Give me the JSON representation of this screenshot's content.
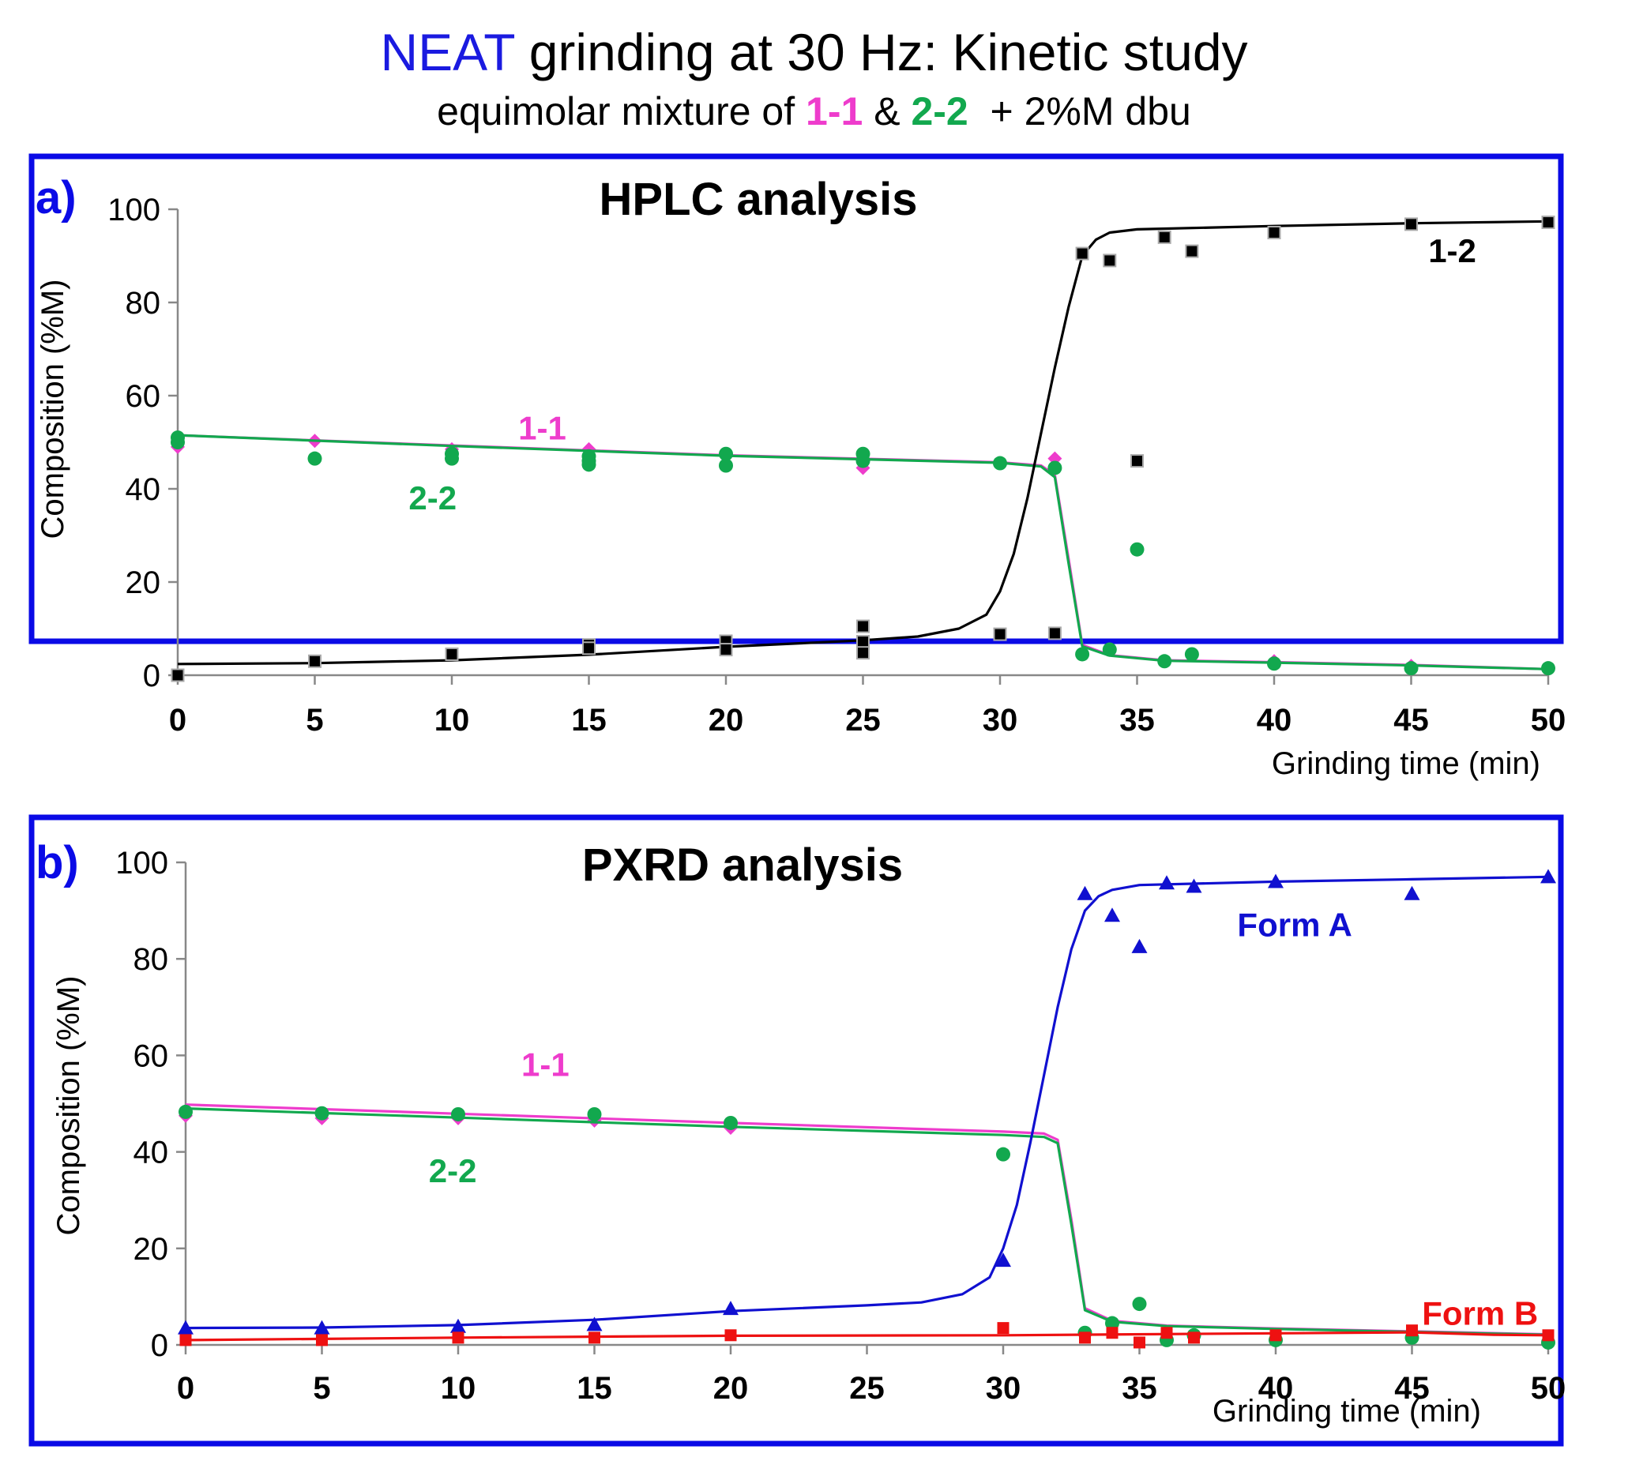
{
  "header": {
    "title_highlight": "NEAT",
    "title_rest": "grinding at 30 Hz: Kinetic study",
    "subtitle_pre": "equimolar mixture of",
    "subtitle_a": "1-1",
    "subtitle_amp": "&",
    "subtitle_b": "2-2",
    "subtitle_post": "+ 2%M dbu"
  },
  "colors": {
    "frame": "#0a0ae6",
    "highlight_blue": "#1a1ae0",
    "magenta": "#ee3ccc",
    "green": "#12a84e",
    "black": "#000000",
    "blue": "#1010d0",
    "red": "#ee1111",
    "axis": "#888888"
  },
  "chart_data": [
    {
      "type": "scatter",
      "panel_label": "a)",
      "title": "HPLC analysis",
      "xlabel": "Grinding time (min)",
      "ylabel": "Composition (%M)",
      "xlim": [
        0,
        50
      ],
      "ylim": [
        0,
        100
      ],
      "xticks": [
        "0",
        "5",
        "10",
        "15",
        "20",
        "25",
        "30",
        "35",
        "40",
        "45",
        "50"
      ],
      "yticks": [
        "0",
        "20",
        "40",
        "60",
        "80",
        "100"
      ],
      "grid": false,
      "annotations": [
        {
          "text": "1-2",
          "x": 46.5,
          "y": 91,
          "color": "black"
        },
        {
          "text": "1-1",
          "x": 13.3,
          "y": 53,
          "color": "magenta"
        },
        {
          "text": "2-2",
          "x": 9.3,
          "y": 38,
          "color": "green"
        }
      ],
      "series": [
        {
          "marker": "diamond",
          "color": "magenta",
          "points": [
            [
              0,
              49
            ],
            [
              5,
              50.3
            ],
            [
              10,
              48.5
            ],
            [
              15,
              48.5
            ],
            [
              20,
              47
            ],
            [
              25,
              44.5
            ],
            [
              30,
              45.5
            ],
            [
              32,
              46.5
            ],
            [
              34,
              5.5
            ],
            [
              36,
              3
            ],
            [
              37,
              4.5
            ],
            [
              40,
              3
            ],
            [
              45,
              2
            ],
            [
              50,
              1.5
            ]
          ],
          "fit": [
            [
              0,
              51.5
            ],
            [
              10,
              49.3
            ],
            [
              20,
              47.2
            ],
            [
              30,
              45.7
            ],
            [
              31.5,
              45
            ],
            [
              32,
              43
            ],
            [
              32.5,
              25
            ],
            [
              33,
              6.5
            ],
            [
              34,
              4.3
            ],
            [
              36,
              3.2
            ],
            [
              40,
              2.8
            ],
            [
              45,
              2.2
            ],
            [
              50,
              1.3
            ]
          ]
        },
        {
          "marker": "circle",
          "color": "green",
          "points": [
            [
              0,
              51
            ],
            [
              0,
              50
            ],
            [
              5,
              46.5
            ],
            [
              10,
              47.5
            ],
            [
              10,
              46.5
            ],
            [
              15,
              47
            ],
            [
              15,
              46
            ],
            [
              15,
              45.2
            ],
            [
              20,
              47.5
            ],
            [
              20,
              45
            ],
            [
              25,
              47.5
            ],
            [
              25,
              46
            ],
            [
              30,
              45.5
            ],
            [
              32,
              44.5
            ],
            [
              33,
              4.5
            ],
            [
              34,
              5.5
            ],
            [
              35,
              27
            ],
            [
              36,
              3
            ],
            [
              37,
              4.5
            ],
            [
              40,
              2.5
            ],
            [
              45,
              1.5
            ],
            [
              50,
              1.5
            ]
          ],
          "fit": [
            [
              0,
              51.5
            ],
            [
              10,
              49.2
            ],
            [
              20,
              47.1
            ],
            [
              30,
              45.6
            ],
            [
              31.5,
              44.8
            ],
            [
              32,
              42.5
            ],
            [
              32.5,
              24
            ],
            [
              33,
              6.2
            ],
            [
              34,
              4.2
            ],
            [
              36,
              3.1
            ],
            [
              40,
              2.7
            ],
            [
              45,
              2.1
            ],
            [
              50,
              1.3
            ]
          ]
        },
        {
          "marker": "square",
          "color": "black",
          "points": [
            [
              0,
              0
            ],
            [
              5,
              3
            ],
            [
              10,
              4.5
            ],
            [
              15,
              6.5
            ],
            [
              15,
              5.8
            ],
            [
              20,
              7.3
            ],
            [
              20,
              5.5
            ],
            [
              25,
              10.5
            ],
            [
              25,
              7.2
            ],
            [
              25,
              4.8
            ],
            [
              30,
              8.8
            ],
            [
              32,
              9
            ],
            [
              33,
              90.5
            ],
            [
              34,
              89
            ],
            [
              35,
              46
            ],
            [
              36,
              94
            ],
            [
              37,
              91
            ],
            [
              40,
              95
            ],
            [
              45,
              96.8
            ],
            [
              50,
              97.2
            ]
          ],
          "fit": [
            [
              0,
              2.4
            ],
            [
              5,
              2.6
            ],
            [
              10,
              3.2
            ],
            [
              15,
              4.4
            ],
            [
              20,
              6.1
            ],
            [
              25,
              7.5
            ],
            [
              27,
              8.3
            ],
            [
              28.5,
              10
            ],
            [
              29.5,
              13
            ],
            [
              30,
              18
            ],
            [
              30.5,
              26
            ],
            [
              31,
              38
            ],
            [
              31.5,
              52
            ],
            [
              32,
              66
            ],
            [
              32.5,
              79
            ],
            [
              33,
              90
            ],
            [
              33.5,
              93.5
            ],
            [
              34,
              95
            ],
            [
              35,
              95.7
            ],
            [
              40,
              96.4
            ],
            [
              45,
              97
            ],
            [
              50,
              97.4
            ]
          ]
        }
      ]
    },
    {
      "type": "scatter",
      "panel_label": "b)",
      "title": "PXRD analysis",
      "xlabel": "Grinding time (min)",
      "ylabel": "Composition (%M)",
      "xlim": [
        0,
        50
      ],
      "ylim": [
        0,
        100
      ],
      "xticks": [
        "0",
        "5",
        "10",
        "15",
        "20",
        "25",
        "30",
        "35",
        "40",
        "45",
        "50"
      ],
      "yticks": [
        "0",
        "20",
        "40",
        "60",
        "80",
        "100"
      ],
      "grid": false,
      "annotations": [
        {
          "text": "Form A",
          "x": 40.7,
          "y": 87,
          "color": "blue"
        },
        {
          "text": "1-1",
          "x": 13.2,
          "y": 58,
          "color": "magenta"
        },
        {
          "text": "2-2",
          "x": 9.8,
          "y": 36,
          "color": "green"
        },
        {
          "text": "Form B",
          "x": 47.5,
          "y": 6.5,
          "color": "red"
        }
      ],
      "series": [
        {
          "marker": "diamond",
          "color": "magenta",
          "points": [
            [
              0,
              47.5
            ],
            [
              5,
              47
            ],
            [
              10,
              47
            ],
            [
              15,
              46.5
            ],
            [
              20,
              45
            ],
            [
              30,
              39.5
            ]
          ],
          "fit": [
            [
              0,
              49.8
            ],
            [
              10,
              47.9
            ],
            [
              20,
              46
            ],
            [
              30,
              44.2
            ],
            [
              31.5,
              43.8
            ],
            [
              32,
              42.5
            ],
            [
              32.5,
              26
            ],
            [
              33,
              7.6
            ],
            [
              34,
              5
            ],
            [
              36,
              4
            ],
            [
              40,
              3.4
            ],
            [
              45,
              2.8
            ],
            [
              50,
              2.2
            ]
          ]
        },
        {
          "marker": "circle",
          "color": "green",
          "points": [
            [
              0,
              48.3
            ],
            [
              5,
              48
            ],
            [
              10,
              47.8
            ],
            [
              15,
              47.8
            ],
            [
              20,
              46
            ],
            [
              30,
              39.5
            ],
            [
              33,
              2.5
            ],
            [
              34,
              4.5
            ],
            [
              35,
              8.5
            ],
            [
              36,
              1
            ],
            [
              37,
              2
            ],
            [
              40,
              1
            ],
            [
              45,
              1.5
            ],
            [
              50,
              0.5
            ]
          ],
          "fit": [
            [
              0,
              49
            ],
            [
              10,
              47.1
            ],
            [
              20,
              45.2
            ],
            [
              30,
              43.5
            ],
            [
              31.5,
              43.1
            ],
            [
              32,
              41.8
            ],
            [
              32.5,
              25
            ],
            [
              33,
              7.2
            ],
            [
              34,
              4.8
            ],
            [
              36,
              3.9
            ],
            [
              40,
              3.3
            ],
            [
              45,
              2.7
            ],
            [
              50,
              2.1
            ]
          ]
        },
        {
          "marker": "triangle",
          "color": "blue",
          "points": [
            [
              0,
              3.5
            ],
            [
              5,
              3.5
            ],
            [
              10,
              3.8
            ],
            [
              15,
              4.2
            ],
            [
              20,
              7.5
            ],
            [
              30,
              17.5
            ],
            [
              33,
              93.5
            ],
            [
              34,
              89
            ],
            [
              35,
              82.5
            ],
            [
              36,
              95.7
            ],
            [
              37,
              95
            ],
            [
              40,
              96
            ],
            [
              45,
              93.5
            ],
            [
              50,
              97
            ]
          ],
          "fit": [
            [
              0,
              3.5
            ],
            [
              5,
              3.6
            ],
            [
              10,
              4.1
            ],
            [
              15,
              5.2
            ],
            [
              20,
              7
            ],
            [
              25,
              8.2
            ],
            [
              27,
              8.8
            ],
            [
              28.5,
              10.5
            ],
            [
              29.5,
              14
            ],
            [
              30,
              20
            ],
            [
              30.5,
              29
            ],
            [
              31,
              42
            ],
            [
              31.5,
              56
            ],
            [
              32,
              70
            ],
            [
              32.5,
              82
            ],
            [
              33,
              90
            ],
            [
              33.5,
              93
            ],
            [
              34,
              94.3
            ],
            [
              35,
              95.3
            ],
            [
              40,
              96
            ],
            [
              45,
              96.5
            ],
            [
              50,
              97
            ]
          ]
        },
        {
          "marker": "square",
          "color": "red",
          "points": [
            [
              0,
              1
            ],
            [
              5,
              1
            ],
            [
              10,
              1.5
            ],
            [
              15,
              1.5
            ],
            [
              20,
              2
            ],
            [
              30,
              3.5
            ],
            [
              33,
              1.5
            ],
            [
              34,
              2.5
            ],
            [
              35,
              0.5
            ],
            [
              36,
              2.5
            ],
            [
              37,
              1.5
            ],
            [
              40,
              2
            ],
            [
              45,
              3
            ],
            [
              50,
              2
            ]
          ],
          "fit": [
            [
              0,
              1
            ],
            [
              10,
              1.5
            ],
            [
              20,
              1.9
            ],
            [
              30,
              2
            ],
            [
              40,
              2.4
            ],
            [
              45,
              2.6
            ],
            [
              48,
              2.1
            ],
            [
              50,
              2
            ]
          ]
        }
      ]
    }
  ]
}
